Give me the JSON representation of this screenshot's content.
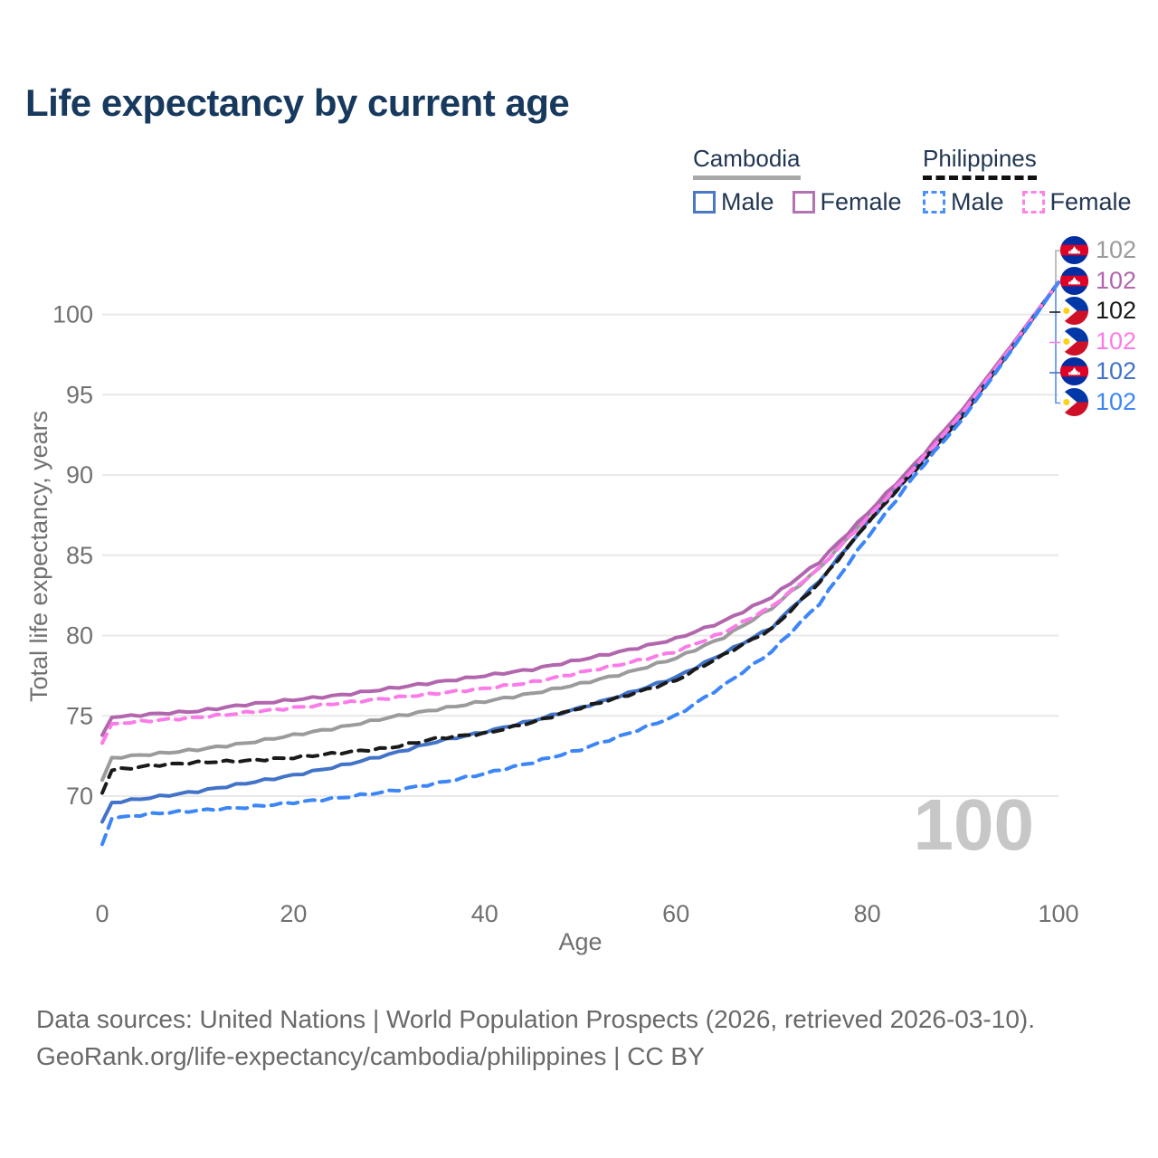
{
  "title": "Life expectancy by current age",
  "age_watermark": "100",
  "legend": {
    "groups": [
      {
        "country": "Cambodia",
        "underline_style": "solid",
        "underline_color": "#a8a8a8",
        "items": [
          {
            "label": "Male",
            "color": "#4a78c5",
            "style": "solid"
          },
          {
            "label": "Female",
            "color": "#b471b4",
            "style": "solid"
          }
        ]
      },
      {
        "country": "Philippines",
        "underline_style": "dashed",
        "underline_color": "#111111",
        "items": [
          {
            "label": "Male",
            "color": "#4a90fa",
            "style": "dashed"
          },
          {
            "label": "Female",
            "color": "#fc83e3",
            "style": "dashed"
          }
        ]
      }
    ]
  },
  "footer": {
    "line1": "Data sources: United Nations | World Population Prospects (2026, retrieved 2026-03-10).",
    "line2": "GeoRank.org/life-expectancy/cambodia/philippines | CC BY"
  },
  "chart_data": {
    "type": "line",
    "title": "Life expectancy by current age",
    "xlabel": "Age",
    "ylabel": "Total life expectancy, years",
    "x_ticks": [
      0,
      20,
      40,
      60,
      80,
      100
    ],
    "y_ticks": [
      70,
      75,
      80,
      85,
      90,
      95,
      100
    ],
    "xlim": [
      0,
      100
    ],
    "ylim": [
      66.5,
      103
    ],
    "grid": "horizontal-only",
    "legend_position": "top-right",
    "ages": [
      0,
      1,
      5,
      10,
      15,
      20,
      25,
      30,
      35,
      40,
      45,
      50,
      55,
      60,
      65,
      70,
      75,
      80,
      85,
      90,
      95,
      100
    ],
    "series": [
      {
        "name": "Cambodia Total",
        "country": "Cambodia",
        "flag": "cambodia",
        "style": "solid",
        "color": "#9b9b9b",
        "end_label": "102",
        "values": [
          71.0,
          72.4,
          72.6,
          72.9,
          73.3,
          73.8,
          74.3,
          74.9,
          75.4,
          75.9,
          76.4,
          77.0,
          77.7,
          78.6,
          79.9,
          81.7,
          84.2,
          87.4,
          90.6,
          94.0,
          97.9,
          102
        ]
      },
      {
        "name": "Cambodia Female",
        "country": "Cambodia",
        "flag": "cambodia",
        "style": "solid",
        "color": "#b266ad",
        "end_label": "102",
        "values": [
          73.8,
          74.9,
          75.1,
          75.3,
          75.7,
          76.0,
          76.3,
          76.7,
          77.1,
          77.5,
          77.9,
          78.5,
          79.1,
          79.8,
          80.9,
          82.4,
          84.6,
          87.6,
          90.7,
          94.1,
          98.0,
          102
        ]
      },
      {
        "name": "Philippines Total",
        "country": "Philippines",
        "flag": "philippines",
        "style": "dashed",
        "color": "#1a1a1a",
        "end_label": "102",
        "values": [
          70.2,
          71.6,
          71.9,
          72.1,
          72.2,
          72.4,
          72.7,
          73.0,
          73.6,
          73.9,
          74.6,
          75.5,
          76.3,
          77.2,
          78.8,
          80.4,
          83.3,
          87.0,
          90.3,
          93.7,
          97.8,
          102
        ]
      },
      {
        "name": "Philippines Female",
        "country": "Philippines",
        "flag": "philippines",
        "style": "dashed",
        "color": "#fb7ce8",
        "end_label": "102",
        "values": [
          73.3,
          74.5,
          74.7,
          74.9,
          75.2,
          75.5,
          75.8,
          76.1,
          76.4,
          76.7,
          77.1,
          77.7,
          78.3,
          79.0,
          80.2,
          81.8,
          84.2,
          87.3,
          90.5,
          93.9,
          97.9,
          102
        ]
      },
      {
        "name": "Cambodia Male",
        "country": "Cambodia",
        "flag": "cambodia",
        "style": "solid",
        "color": "#4273c8",
        "end_label": "102",
        "values": [
          68.4,
          69.6,
          69.9,
          70.3,
          70.8,
          71.3,
          71.9,
          72.6,
          73.4,
          74.0,
          74.7,
          75.5,
          76.4,
          77.4,
          78.9,
          80.5,
          83.4,
          87.0,
          90.4,
          93.8,
          97.8,
          102
        ]
      },
      {
        "name": "Philippines Male",
        "country": "Philippines",
        "flag": "philippines",
        "style": "dashed",
        "color": "#3c86f7",
        "end_label": "102",
        "values": [
          67.0,
          68.6,
          68.9,
          69.1,
          69.3,
          69.6,
          69.9,
          70.3,
          70.8,
          71.4,
          72.1,
          72.9,
          73.9,
          75.0,
          76.9,
          79.0,
          82.0,
          86.1,
          90.0,
          93.5,
          97.7,
          102
        ]
      }
    ]
  }
}
